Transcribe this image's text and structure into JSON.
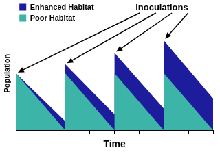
{
  "chart_data": {
    "type": "area",
    "x_label": "Time",
    "y_label": "Population",
    "annotation": "Inoculations",
    "xlim": [
      0,
      8
    ],
    "xticks": [
      0,
      1,
      2,
      3,
      4,
      5,
      6,
      7,
      8
    ],
    "ylim": [
      0,
      100
    ],
    "grid": false,
    "tick_labels": false,
    "legend": "upper left",
    "series": [
      {
        "name": "Enhanced Habitat",
        "color": "#1c1c9c",
        "x": [
          0,
          0,
          2,
          2,
          4,
          4,
          6,
          6,
          8,
          8
        ],
        "values": [
          0,
          50,
          8,
          58,
          14,
          68,
          19,
          79,
          28,
          0
        ]
      },
      {
        "name": "Poor Habitat",
        "color": "#3cb4a8",
        "x": [
          0,
          0,
          2,
          2,
          4,
          4,
          6,
          6,
          8
        ],
        "values": [
          0,
          50,
          0,
          50,
          0,
          50,
          0,
          50,
          0
        ]
      }
    ]
  }
}
